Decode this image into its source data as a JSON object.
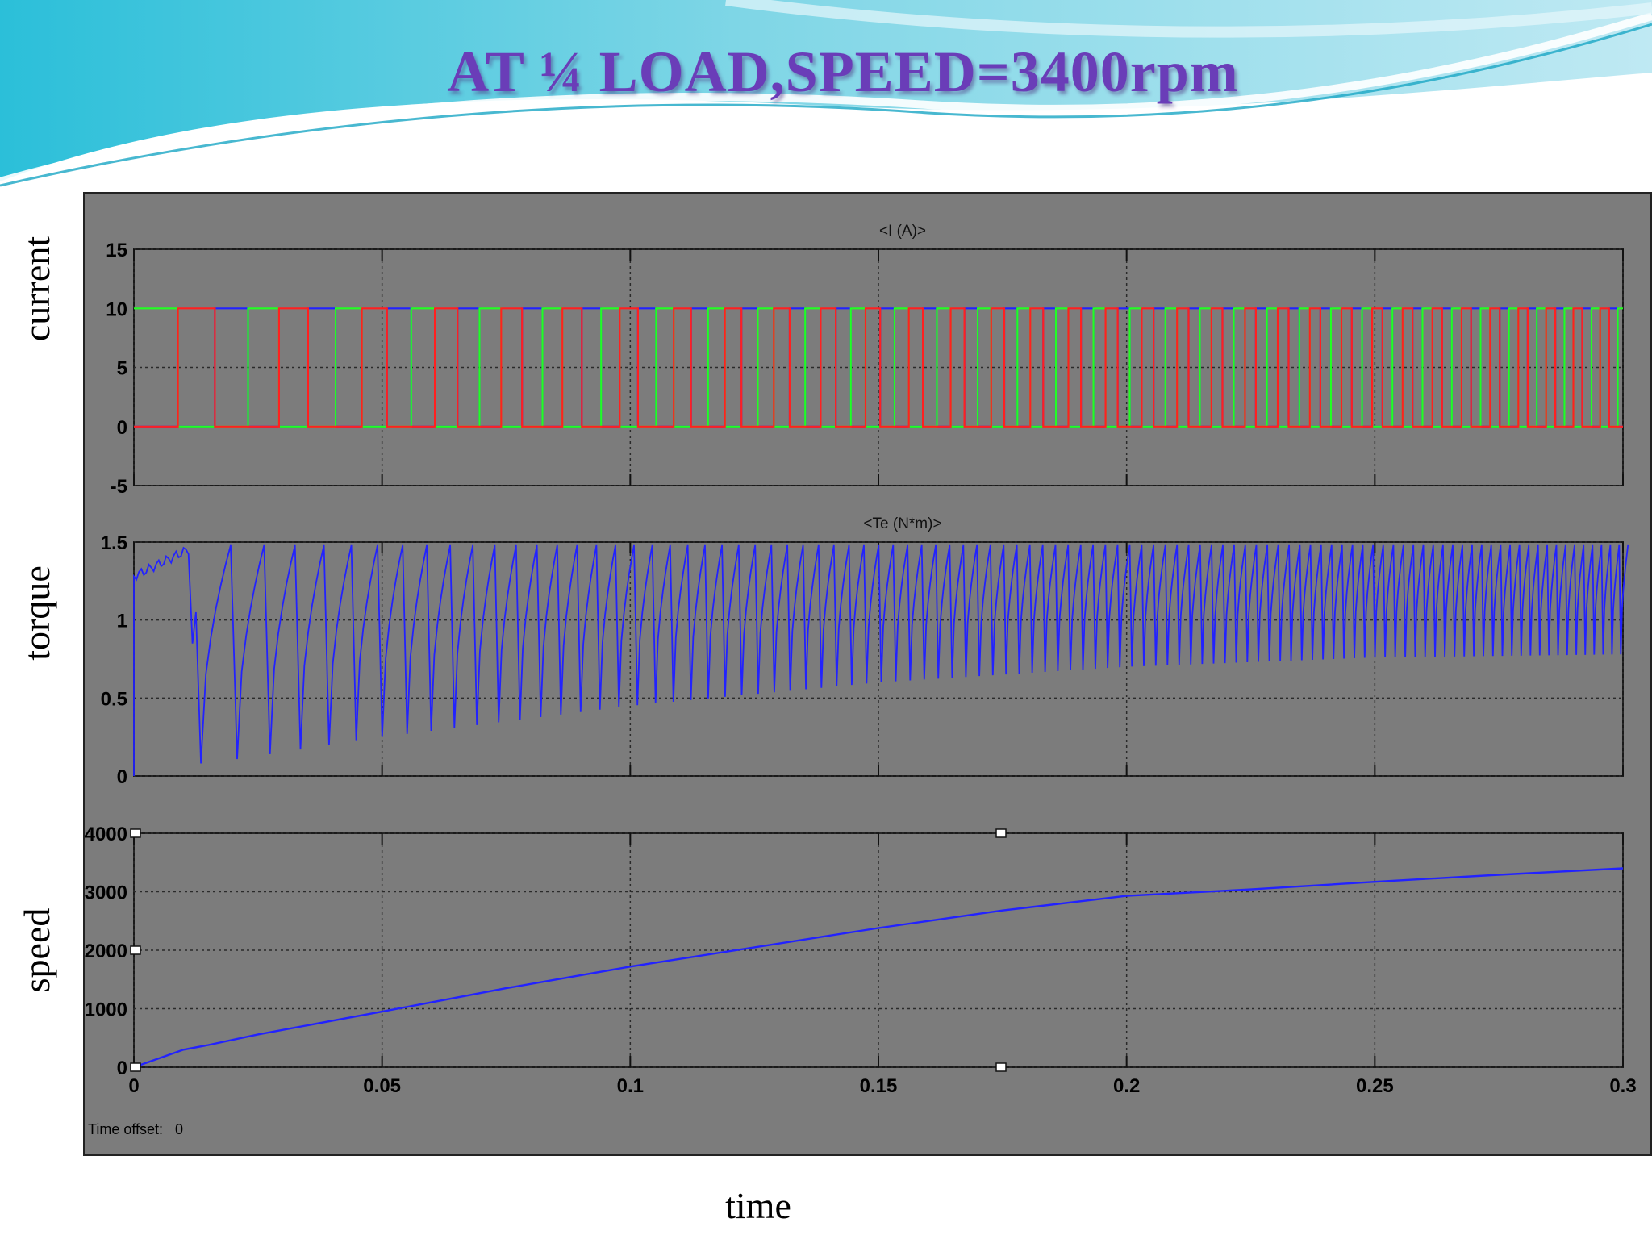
{
  "slide": {
    "title": "AT ¼ LOAD,SPEED=3400rpm",
    "side_labels": {
      "current": "current",
      "torque": "torque",
      "speed": "speed"
    },
    "x_label": "time",
    "banner_colors": [
      "#2bbfd9",
      "#7fd6e6",
      "#c8eef5"
    ]
  },
  "chart_data": [
    {
      "type": "line",
      "title": "<I (A)>",
      "xlim": [
        0,
        0.3
      ],
      "ylim": [
        -5,
        15
      ],
      "xticks": [
        0,
        0.05,
        0.1,
        0.15,
        0.2,
        0.25,
        0.3
      ],
      "yticks": [
        15,
        10,
        5,
        0,
        -5
      ],
      "grid": true,
      "background": "#7c7c7c",
      "waveform": "three-phase square pulses, 0 to 10 A, period shrinking as speed rises",
      "series": [
        {
          "color": "#ff2020",
          "values": [
            0,
            10
          ]
        },
        {
          "color": "#22ff22",
          "values": [
            10,
            0
          ]
        },
        {
          "color": "#2222ff",
          "values": [
            0,
            10
          ]
        }
      ],
      "period_start_s": 0.035,
      "period_end_s": 0.0053
    },
    {
      "type": "line",
      "title": "<Te (N*m)>",
      "xlim": [
        0,
        0.3
      ],
      "ylim": [
        0,
        1.5
      ],
      "yticks": [
        1.5,
        1,
        0.5,
        0
      ],
      "grid": true,
      "color": "#2222ff",
      "upper_envelope": 1.48,
      "lower_envelope": {
        "x": [
          0.015,
          0.05,
          0.1,
          0.15,
          0.2,
          0.25,
          0.3
        ],
        "y": [
          0.08,
          0.25,
          0.45,
          0.6,
          0.7,
          0.76,
          0.78
        ]
      }
    },
    {
      "type": "line",
      "title": "",
      "xlim": [
        0,
        0.3
      ],
      "ylim": [
        0,
        4000
      ],
      "xticks": [
        0,
        0.05,
        0.1,
        0.15,
        0.2,
        0.25,
        0.3
      ],
      "xtick_labels": [
        "0",
        "0.05",
        "0.1",
        "0.15",
        "0.2",
        "0.25",
        "0.3"
      ],
      "yticks": [
        4000,
        3000,
        2000,
        1000,
        0
      ],
      "grid": true,
      "color": "#2222ff",
      "x": [
        0,
        0.01,
        0.015,
        0.025,
        0.05,
        0.075,
        0.1,
        0.125,
        0.15,
        0.175,
        0.2,
        0.225,
        0.25,
        0.275,
        0.3
      ],
      "y": [
        0,
        300,
        380,
        560,
        950,
        1350,
        1720,
        2050,
        2380,
        2680,
        2930,
        3040,
        3170,
        3290,
        3400
      ]
    }
  ],
  "time_offset": {
    "label": "Time offset:",
    "value": "0"
  }
}
